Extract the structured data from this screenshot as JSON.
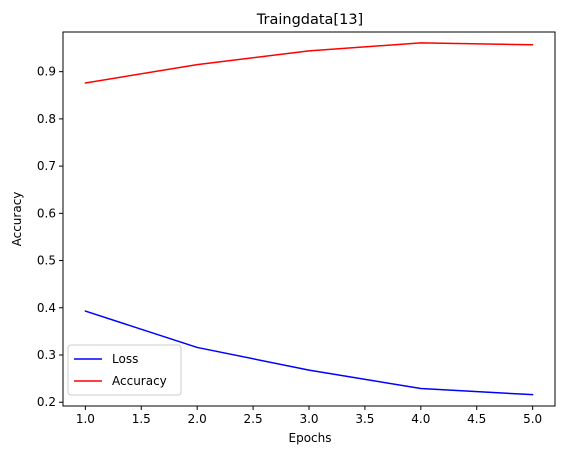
{
  "chart_data": {
    "type": "line",
    "title": "Traingdata[13]",
    "xlabel": "Epochs",
    "ylabel": "Accuracy",
    "x": [
      1,
      2,
      3,
      4,
      5
    ],
    "xlim": [
      0.8,
      5.2
    ],
    "ylim": [
      0.192,
      0.984
    ],
    "xticks": [
      "1.0",
      "1.5",
      "2.0",
      "2.5",
      "3.0",
      "3.5",
      "4.0",
      "4.5",
      "5.0"
    ],
    "yticks": [
      "0.2",
      "0.3",
      "0.4",
      "0.5",
      "0.6",
      "0.7",
      "0.8",
      "0.9"
    ],
    "grid": false,
    "legend_position": "lower-left",
    "series": [
      {
        "name": "Loss",
        "color": "#0000ff",
        "values": [
          0.393,
          0.316,
          0.268,
          0.229,
          0.216
        ]
      },
      {
        "name": "Accuracy",
        "color": "#ff0000",
        "values": [
          0.876,
          0.915,
          0.944,
          0.961,
          0.957
        ]
      }
    ]
  }
}
